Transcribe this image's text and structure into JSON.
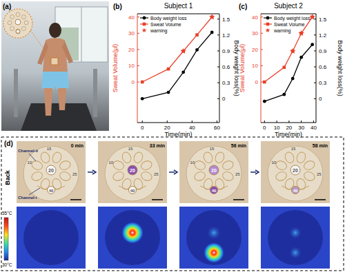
{
  "chart_data": [
    {
      "type": "line",
      "panel_label": "(b)",
      "title": "Subject 1",
      "x_label": "Time(min)",
      "y_label": "Sweat Volume(μl)",
      "y2_label": "Body weight loss(%)",
      "x": [
        0,
        21,
        33,
        44,
        56
      ],
      "xlim": [
        -4,
        62
      ],
      "xticks": [
        0,
        20,
        40,
        60
      ],
      "ylim": [
        -25,
        42
      ],
      "yticks": [
        0,
        10,
        20,
        30,
        40
      ],
      "y2lim": [
        -0.45,
        1.6
      ],
      "y2ticks": [
        0,
        0.3,
        0.6,
        0.9,
        1.2,
        1.5
      ],
      "grid": false,
      "legend": "upper left",
      "series": [
        {
          "name": "Body weight loss",
          "color": "#000000",
          "axis": "y2",
          "marker": "circle",
          "line_style": "solid",
          "values": [
            0,
            0.12,
            0.5,
            0.92,
            1.25
          ]
        },
        {
          "name": "Sweat Volume",
          "color": "#e8402a",
          "marker": "square",
          "line_style": "solid",
          "values": [
            0,
            8,
            19,
            29,
            40
          ]
        },
        {
          "name": "warning",
          "color": "#e8402a",
          "type": "scatter",
          "marker": "star",
          "line_style": "none",
          "values": [
            null,
            null,
            19,
            null,
            40
          ]
        }
      ]
    },
    {
      "type": "line",
      "panel_label": "(c)",
      "title": "Subject 2",
      "x_label": "Time(min)",
      "y_label": "Sweat Volume(μl)",
      "y2_label": "Body weight loss(%)",
      "x": [
        0,
        16,
        23,
        30,
        39
      ],
      "xlim": [
        -3,
        42
      ],
      "xticks": [
        0,
        10,
        20,
        30,
        40
      ],
      "ylim": [
        -25,
        42
      ],
      "yticks": [
        0,
        10,
        20,
        30,
        40
      ],
      "y2lim": [
        -0.45,
        1.6
      ],
      "y2ticks": [
        0,
        0.3,
        0.6,
        0.9,
        1.2,
        1.5
      ],
      "grid": false,
      "legend": "upper left",
      "series": [
        {
          "name": "Body weight loss",
          "color": "#000000",
          "axis": "y2",
          "marker": "circle",
          "line_style": "solid",
          "values": [
            -0.05,
            0.08,
            0.38,
            0.78,
            1.02
          ]
        },
        {
          "name": "Sweat Volume",
          "color": "#e8402a",
          "marker": "square",
          "line_style": "solid",
          "values": [
            0,
            9,
            19,
            30,
            40
          ]
        },
        {
          "name": "warning",
          "color": "#e8402a",
          "type": "scatter",
          "marker": "star",
          "line_style": "none",
          "values": [
            null,
            null,
            19,
            30,
            40
          ]
        }
      ]
    }
  ],
  "panel_a": {
    "label": "(a)"
  },
  "panel_d": {
    "label": "(d)",
    "side_label": "Back",
    "frames": [
      "0 min",
      "33 min",
      "56 min",
      "58 min"
    ],
    "center_label": "20",
    "bottom_label": "40",
    "ring_labels": [
      "10",
      "15",
      "25"
    ],
    "channels": [
      "Channel-ii",
      "Channel-i"
    ],
    "colorbar": {
      "max_label": "55°C",
      "min_label": "30°C"
    }
  }
}
